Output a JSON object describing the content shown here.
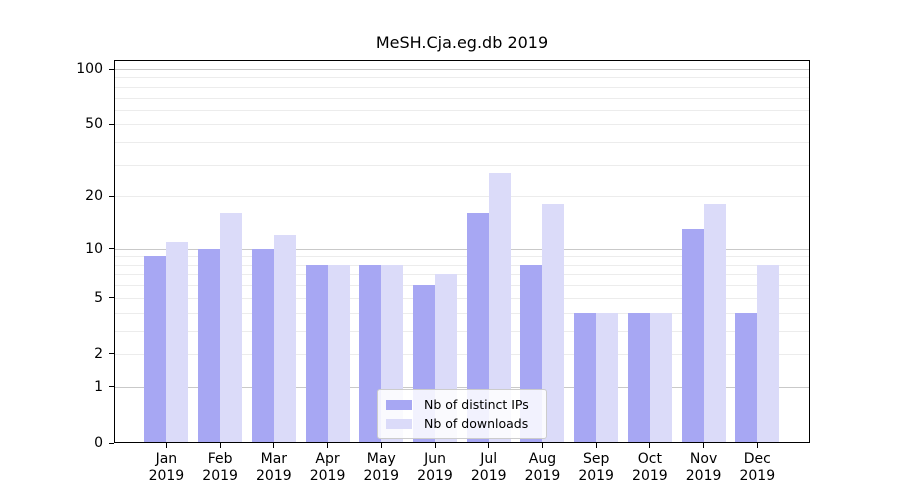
{
  "chart_data": {
    "type": "bar",
    "title": "MeSH.Cja.eg.db 2019",
    "categories": [
      "Jan",
      "Feb",
      "Mar",
      "Apr",
      "May",
      "Jun",
      "Jul",
      "Aug",
      "Sep",
      "Oct",
      "Nov",
      "Dec"
    ],
    "category_year_line": "2019",
    "series": [
      {
        "name": "Nb of distinct IPs",
        "color": "#a7a7f3",
        "values": [
          9,
          10,
          10,
          8,
          8,
          6,
          16,
          8,
          4,
          4,
          13,
          4
        ]
      },
      {
        "name": "Nb of downloads",
        "color": "#dbdbf9",
        "values": [
          11,
          16,
          12,
          8,
          8,
          7,
          27,
          18,
          4,
          4,
          18,
          8
        ]
      }
    ],
    "y_axis": {
      "scale": "log1p",
      "ylim": [
        0,
        100
      ],
      "labeled_ticks": [
        0,
        1,
        2,
        5,
        10,
        20,
        50,
        100
      ],
      "major_grid_values": [
        1,
        10,
        100
      ],
      "minor_grid_values": [
        2,
        3,
        4,
        5,
        6,
        7,
        8,
        9,
        20,
        30,
        40,
        50,
        60,
        70,
        80,
        90
      ]
    },
    "legend": {
      "position": "lower center",
      "entries": [
        "Nb of distinct IPs",
        "Nb of downloads"
      ]
    },
    "grid": true,
    "colors": {
      "major_grid": "#c9c9c9",
      "minor_grid": "#ececec",
      "axis": "#000000",
      "background": "#ffffff",
      "legend_border": "#cccccc"
    }
  }
}
